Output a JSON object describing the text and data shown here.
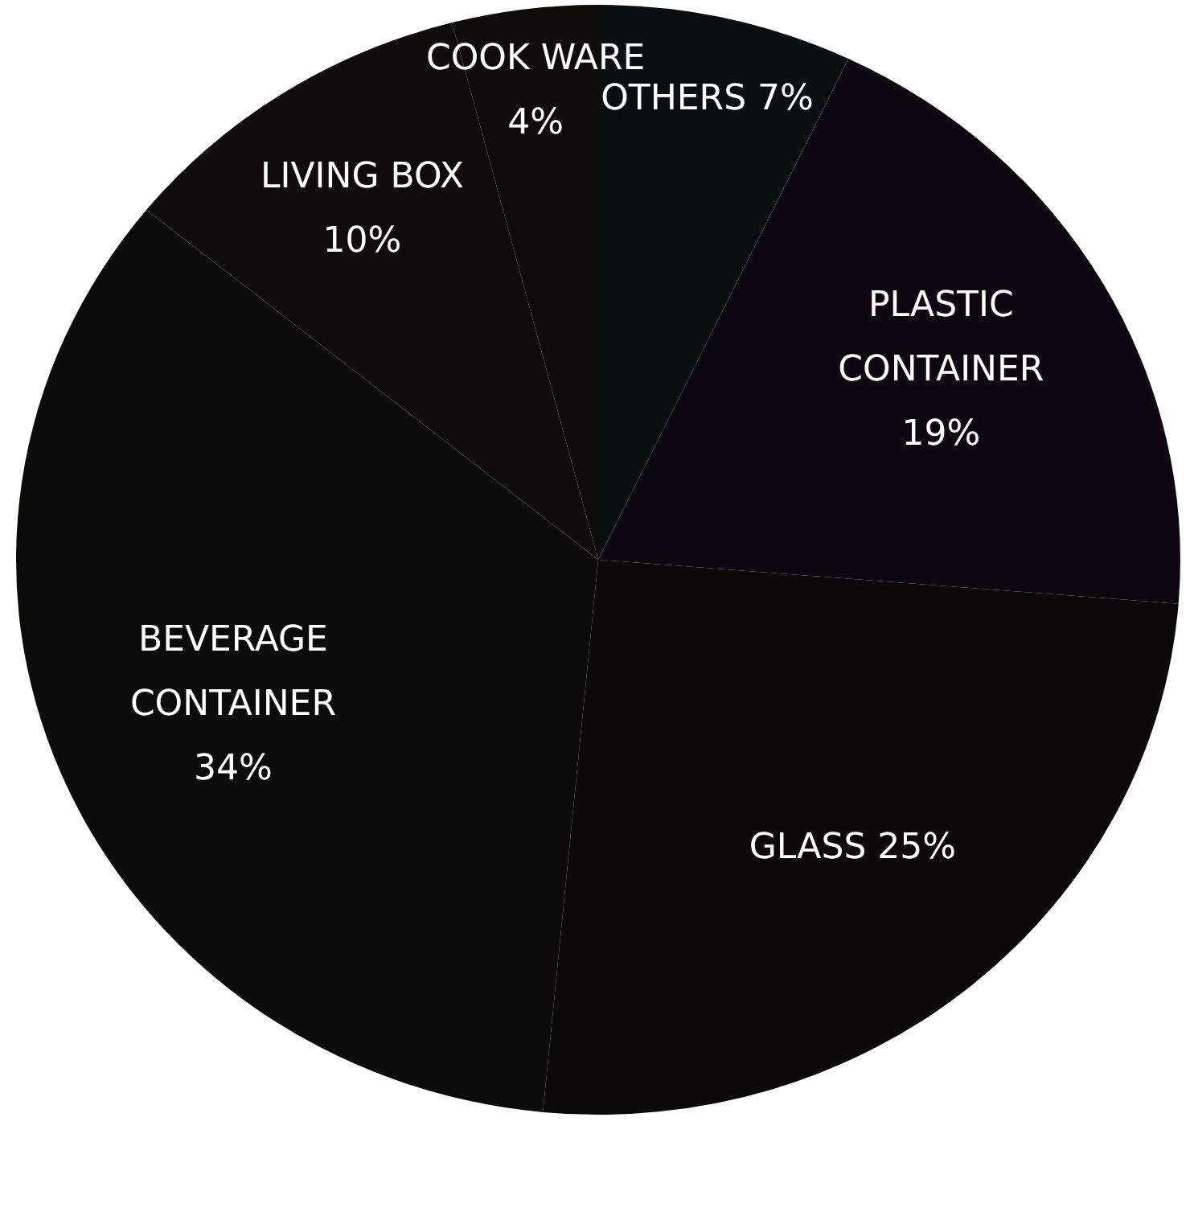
{
  "chart_data": {
    "type": "pie",
    "categories": [
      "OTHERS",
      "PLASTIC CONTAINER",
      "GLASS",
      "BEVERAGE CONTAINER",
      "LIVING BOX",
      "COOK WARE"
    ],
    "values": [
      7,
      19,
      25,
      34,
      10,
      4
    ],
    "value_labels": [
      "7%",
      "19%",
      "25%",
      "34%",
      "10%",
      "4%"
    ],
    "colors": [
      "#0a0f12",
      "#0e0610",
      "#0c0a08",
      "#0b0c0a",
      "#100c0a",
      "#0e0b09"
    ]
  }
}
